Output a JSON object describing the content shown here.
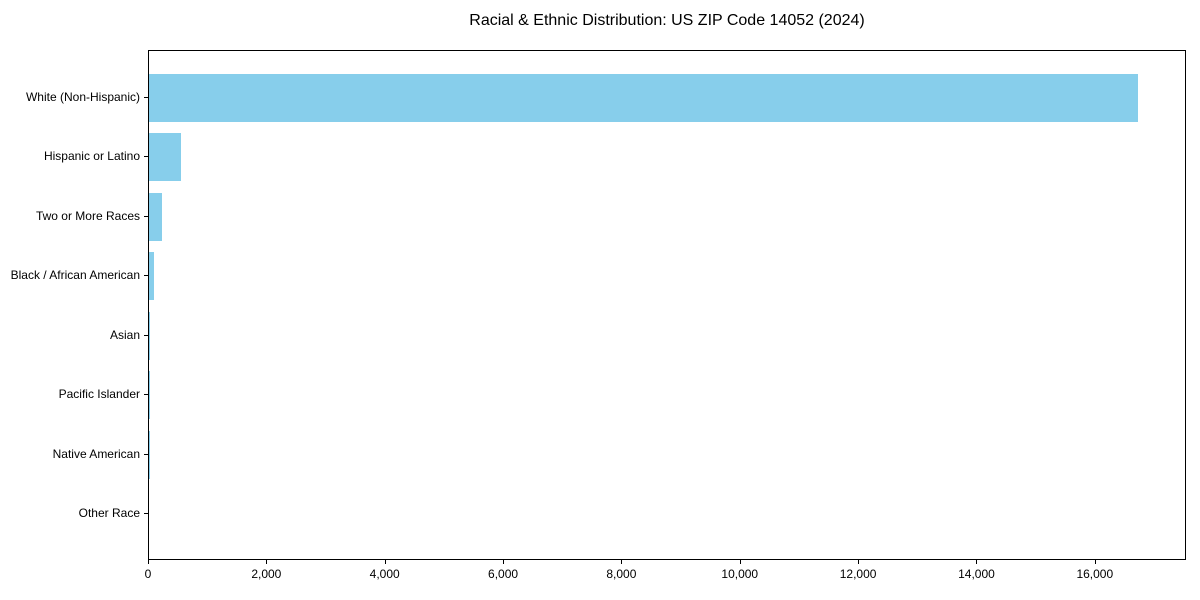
{
  "chart_data": {
    "type": "bar",
    "orientation": "horizontal",
    "title": "Racial & Ethnic Distribution: US ZIP Code 14052 (2024)",
    "categories": [
      "White (Non-Hispanic)",
      "Hispanic or Latino",
      "Two or More Races",
      "Black / African American",
      "Asian",
      "Pacific Islander",
      "Native American",
      "Other Race"
    ],
    "values": [
      16706,
      545,
      212,
      85,
      22,
      12,
      4,
      0
    ],
    "xlabel": "",
    "ylabel": "",
    "xlim": [
      0,
      17541
    ],
    "x_ticks": [
      0,
      2000,
      4000,
      6000,
      8000,
      10000,
      12000,
      14000,
      16000
    ],
    "x_tick_labels": [
      "0",
      "2,000",
      "4,000",
      "6,000",
      "8,000",
      "10,000",
      "12,000",
      "14,000",
      "16,000"
    ],
    "bar_color": "#87CEEB",
    "background_color": "#FFFFFF",
    "frame_color": "#000000",
    "text_color": "#000000",
    "grid": false,
    "legend": false
  }
}
